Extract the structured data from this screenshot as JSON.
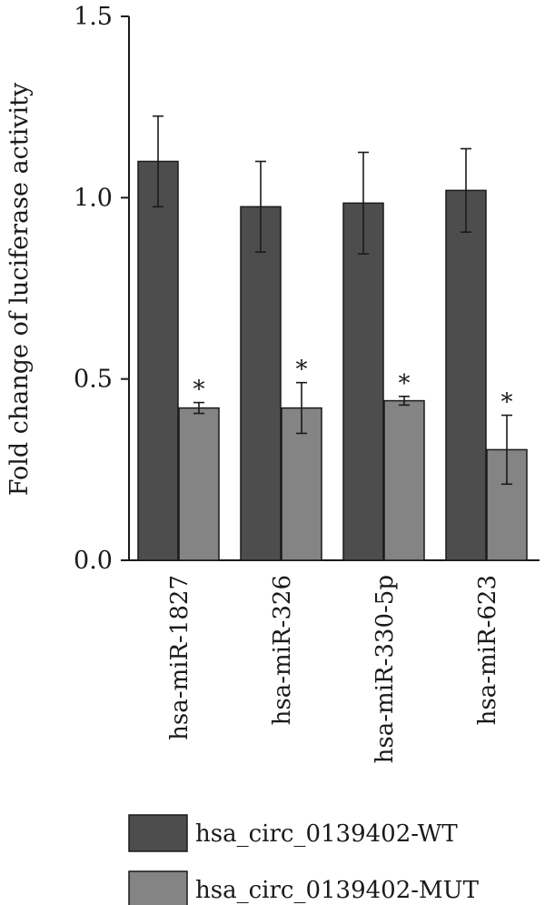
{
  "chart_data": {
    "type": "bar",
    "ylabel": "Fold change of luciferase activity",
    "ylim": [
      0,
      1.5
    ],
    "yticks": [
      "0.0",
      "0.5",
      "1.0",
      "1.5"
    ],
    "categories": [
      "hsa-miR-1827",
      "hsa-miR-326",
      "hsa-miR-330-5p",
      "hsa-miR-623"
    ],
    "series": [
      {
        "name": "hsa_circ_0139402-WT",
        "color": "#4d4d4d",
        "values": [
          1.1,
          0.975,
          0.985,
          1.02
        ],
        "errors": [
          0.125,
          0.125,
          0.14,
          0.115
        ],
        "annotations": [
          "",
          "",
          "",
          ""
        ]
      },
      {
        "name": "hsa_circ_0139402-MUT",
        "color": "#848484",
        "values": [
          0.42,
          0.42,
          0.44,
          0.305
        ],
        "errors": [
          0.015,
          0.07,
          0.012,
          0.095
        ],
        "annotations": [
          "*",
          "*",
          "*",
          "*"
        ]
      }
    ],
    "legend_position": "bottom"
  }
}
